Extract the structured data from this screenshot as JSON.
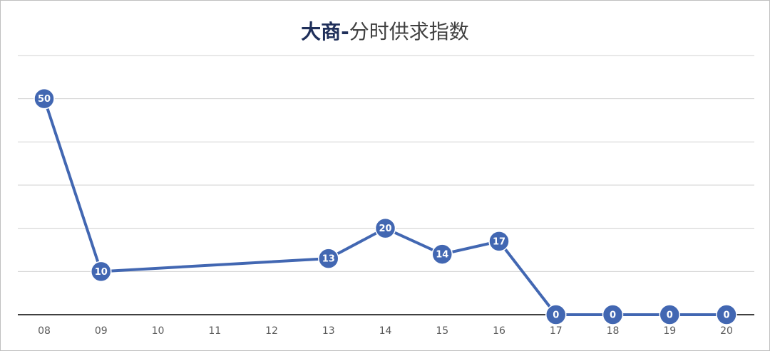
{
  "chart_data": {
    "type": "line",
    "title_bold": "大商-",
    "title": "分时供求指数",
    "x": [
      8,
      9,
      13,
      14,
      15,
      16,
      17,
      18,
      19,
      20
    ],
    "series": [
      {
        "color": "#4267b2",
        "values": [
          50,
          10,
          13,
          20,
          14,
          17,
          0,
          0,
          0,
          0
        ]
      }
    ],
    "xlim": [
      8,
      20
    ],
    "xticks": [
      {
        "value": 8,
        "label": "08"
      },
      {
        "value": 9,
        "label": "09"
      },
      10,
      11,
      12,
      13,
      14,
      15,
      16,
      17,
      18,
      19,
      20
    ],
    "ylim": [
      0,
      60
    ],
    "yticks": [
      0,
      10,
      20,
      30,
      40,
      50,
      60
    ],
    "grid": true
  }
}
